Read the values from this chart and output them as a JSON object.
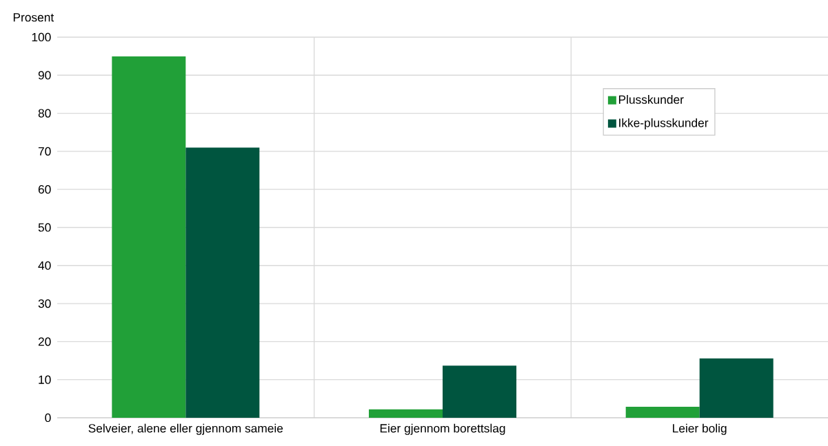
{
  "chart_data": {
    "type": "bar",
    "ylabel": "Prosent",
    "categories": [
      "Selveier, alene eller gjennom sameie",
      "Eier gjennom borettslag",
      "Leier bolig"
    ],
    "series": [
      {
        "name": "Plusskunder",
        "color": "#21a038",
        "values": [
          95,
          2.2,
          2.9
        ]
      },
      {
        "name": "Ikke-plusskunder",
        "color": "#00553f",
        "values": [
          71,
          13.7,
          15.6
        ]
      }
    ],
    "ylim": [
      0,
      100
    ],
    "yticks": [
      0,
      10,
      20,
      30,
      40,
      50,
      60,
      70,
      80,
      90,
      100
    ],
    "grid": true,
    "legend": "top right"
  }
}
